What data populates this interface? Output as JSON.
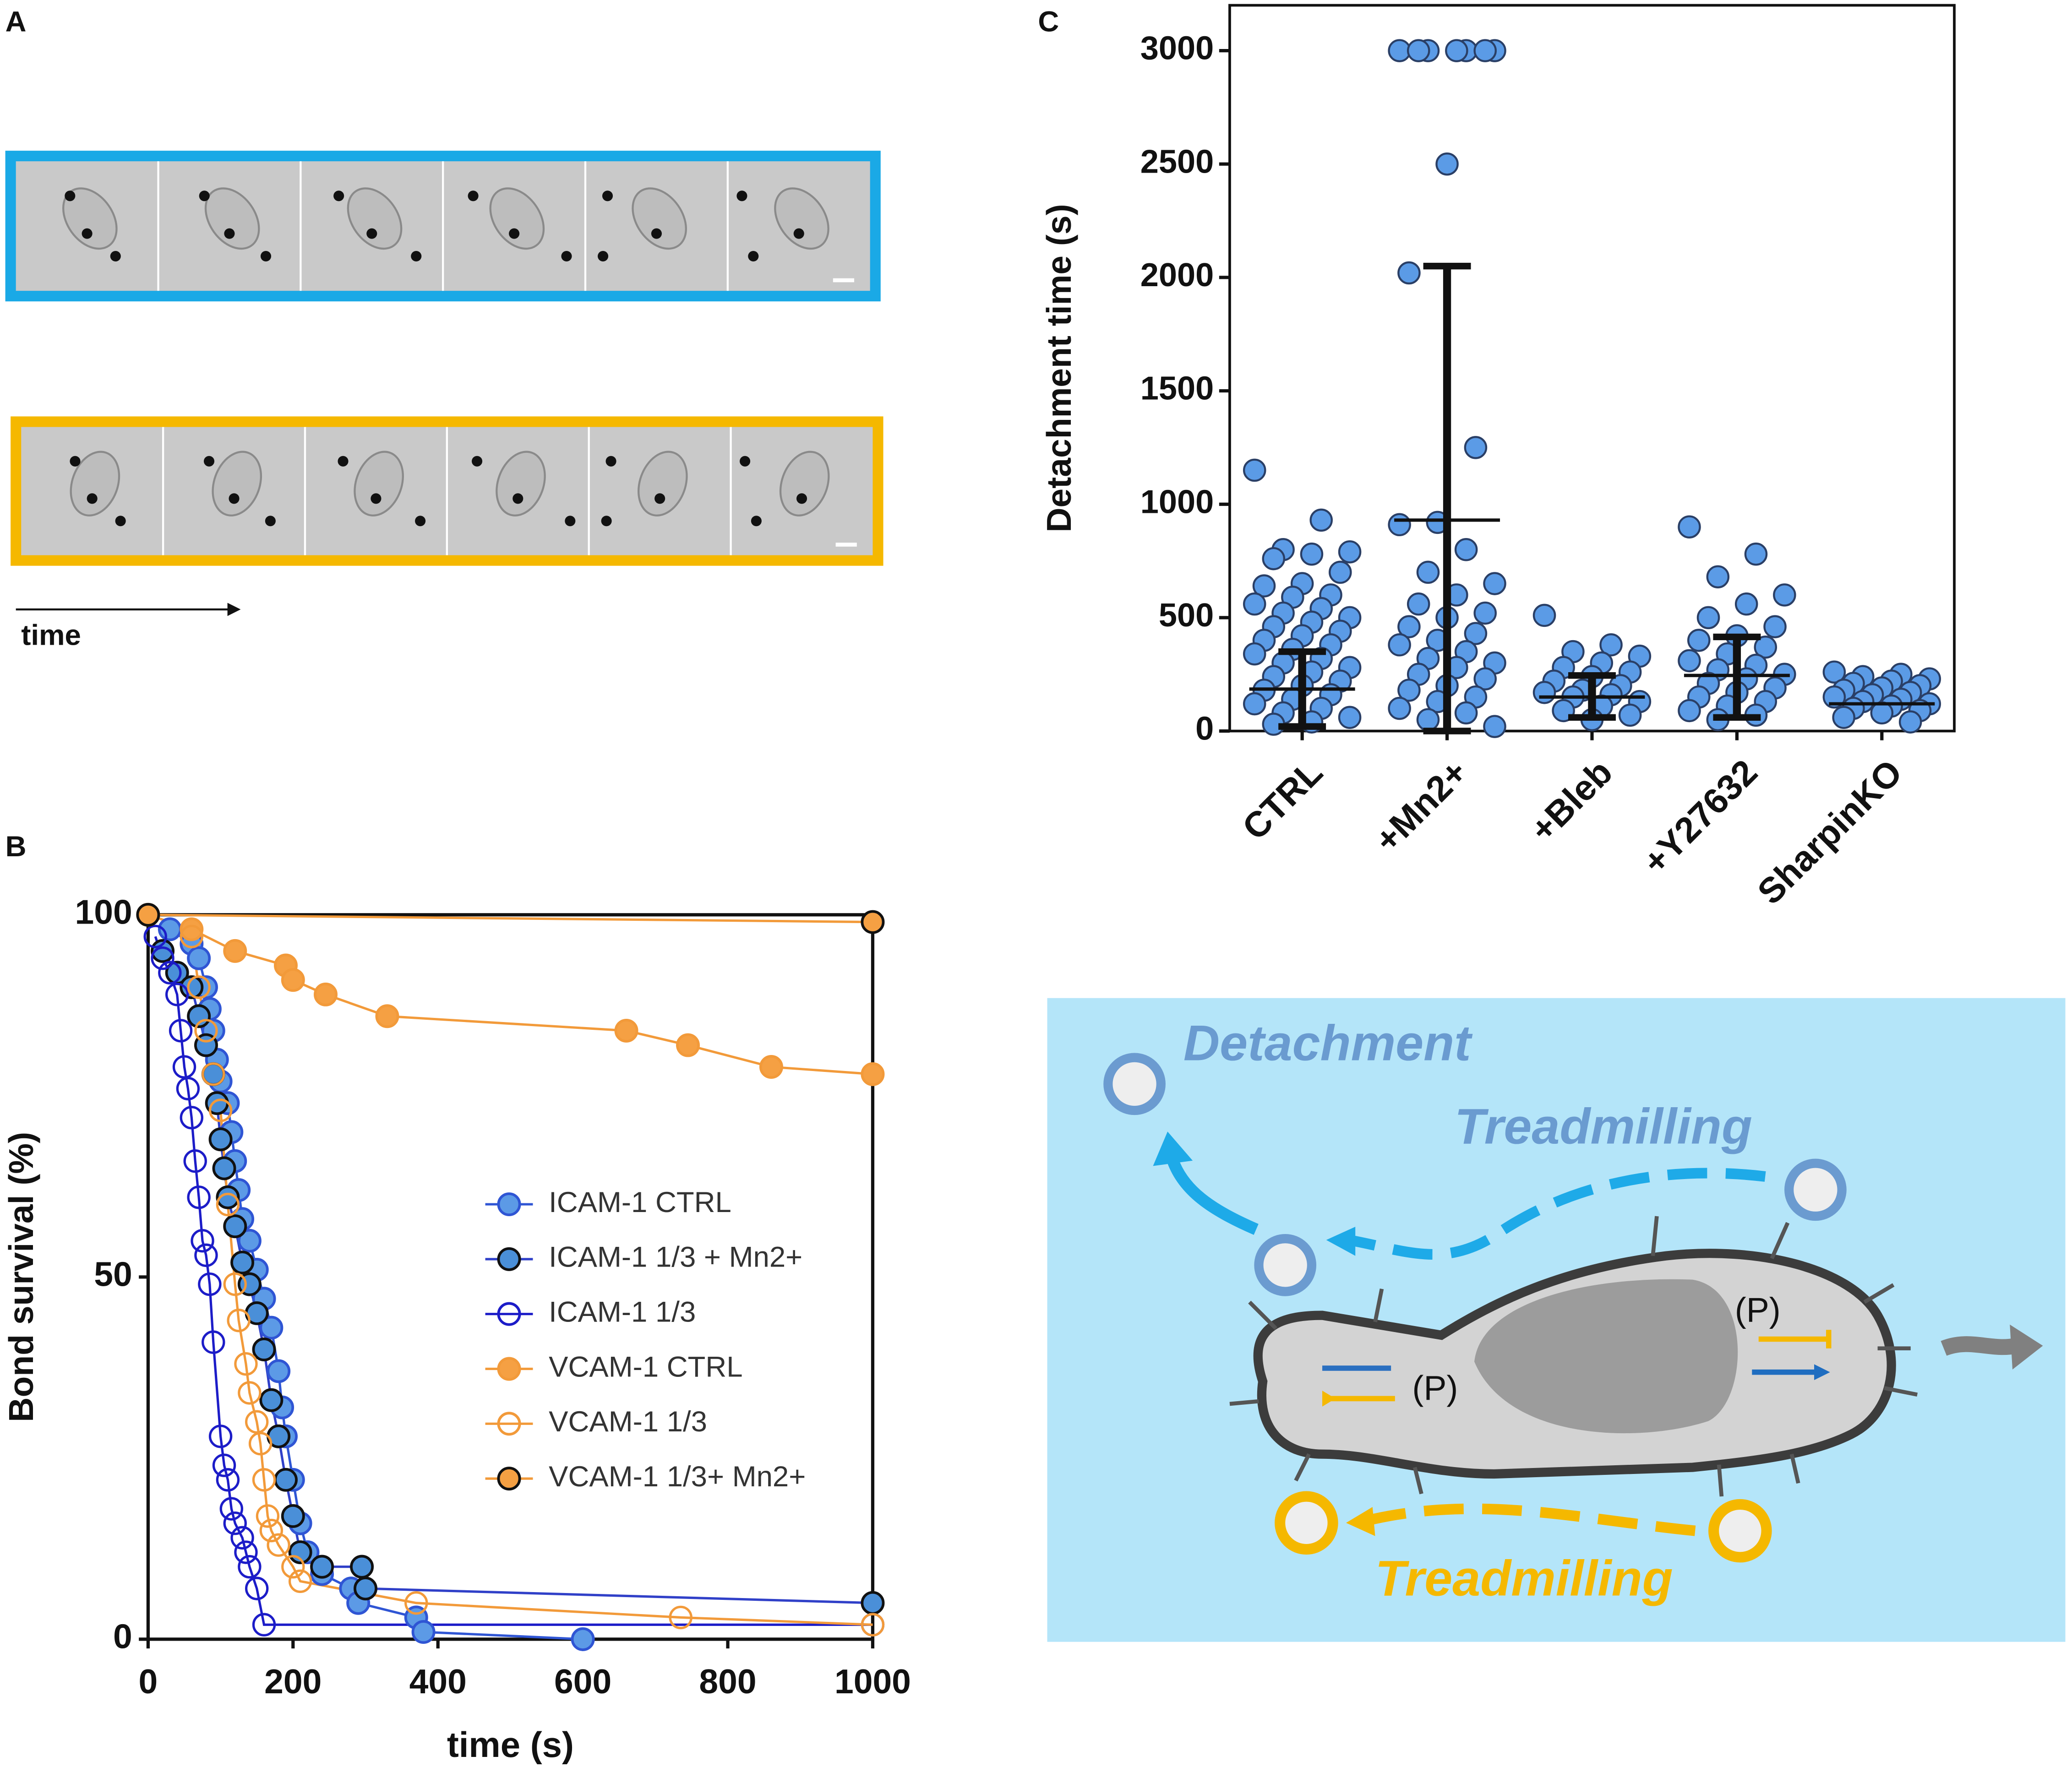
{
  "panel_labels": [
    "A",
    "B",
    "C"
  ],
  "panel_a": {
    "arrow_label": "time"
  },
  "diagram": {
    "detachment": "Detachment",
    "treadmilling_top": "Treadmilling",
    "treadmilling_bottom": "Treadmilling",
    "p_left": "(P)",
    "p_right": "(P)"
  },
  "chart_data": [
    {
      "type": "line",
      "xlabel": "time (s)",
      "ylabel": "Bond survival (%)",
      "xlim": [
        0,
        1000
      ],
      "ylim": [
        0,
        100
      ],
      "xticks": [
        0,
        200,
        400,
        600,
        800,
        1000
      ],
      "yticks": [
        0,
        50,
        100
      ],
      "legend": "center right",
      "series": [
        {
          "name": "ICAM-1 CTRL",
          "color": "#2f55d4",
          "marker": "filled",
          "markercolor": "#5c9ae6",
          "edgecolor": "#2f55d4",
          "x": [
            30,
            60,
            70,
            80,
            85,
            90,
            95,
            100,
            110,
            115,
            120,
            125,
            130,
            140,
            150,
            160,
            170,
            180,
            185,
            190,
            200,
            210,
            220,
            240,
            280,
            290,
            370,
            380,
            600
          ],
          "values": [
            98,
            96,
            94,
            90,
            87,
            84,
            80,
            77,
            74,
            70,
            66,
            62,
            58,
            55,
            51,
            47,
            43,
            37,
            32,
            28,
            22,
            16,
            12,
            9,
            7,
            5,
            3,
            1,
            0
          ]
        },
        {
          "name": "ICAM-1 1/3 + Mn2+",
          "color": "#3040c8",
          "marker": "filled",
          "markercolor": "#4a8fd8",
          "edgecolor": "#111111",
          "x": [
            20,
            40,
            60,
            70,
            80,
            90,
            95,
            100,
            105,
            110,
            120,
            130,
            140,
            150,
            160,
            170,
            180,
            190,
            200,
            210,
            240,
            295,
            300,
            1000
          ],
          "values": [
            95,
            92,
            90,
            86,
            82,
            78,
            74,
            69,
            65,
            61,
            57,
            52,
            49,
            45,
            40,
            33,
            28,
            22,
            17,
            12,
            10,
            10,
            7,
            5
          ]
        },
        {
          "name": "ICAM-1 1/3",
          "color": "#1c1cc8",
          "marker": "open",
          "markercolor": "none",
          "edgecolor": "#1c1cc8",
          "x": [
            10,
            20,
            30,
            40,
            45,
            50,
            55,
            60,
            65,
            70,
            75,
            80,
            85,
            90,
            100,
            105,
            110,
            115,
            120,
            130,
            135,
            140,
            150,
            160,
            1000
          ],
          "values": [
            97,
            94,
            92,
            89,
            84,
            79,
            76,
            72,
            66,
            61,
            55,
            53,
            49,
            41,
            28,
            24,
            22,
            18,
            16,
            14,
            12,
            10,
            7,
            2,
            2
          ]
        },
        {
          "name": "VCAM-1 CTRL",
          "color": "#f29a3a",
          "marker": "filled",
          "markercolor": "#f5a043",
          "edgecolor": "#f29a3a",
          "x": [
            0,
            60,
            120,
            190,
            200,
            245,
            330,
            660,
            745,
            860,
            1000
          ],
          "values": [
            100,
            98,
            95,
            93,
            91,
            89,
            86,
            84,
            82,
            79,
            78
          ]
        },
        {
          "name": "VCAM-1 1/3",
          "color": "#f29a3a",
          "marker": "open",
          "markercolor": "none",
          "edgecolor": "#f29a3a",
          "x": [
            60,
            70,
            80,
            90,
            100,
            110,
            120,
            125,
            135,
            140,
            150,
            155,
            160,
            165,
            170,
            180,
            200,
            210,
            370,
            735,
            1000
          ],
          "values": [
            97,
            90,
            84,
            78,
            73,
            60,
            49,
            44,
            38,
            34,
            30,
            27,
            22,
            17,
            15,
            13,
            10,
            8,
            5,
            3,
            2
          ]
        },
        {
          "name": "VCAM-1 1/3+ Mn2+",
          "color": "#f29a3a",
          "marker": "filled",
          "markercolor": "#f5a043",
          "edgecolor": "#111111",
          "x": [
            0,
            1000
          ],
          "values": [
            100,
            99
          ]
        }
      ]
    },
    {
      "type": "strip",
      "ylabel": "Detachment time (s)",
      "categories": [
        "CTRL",
        "+Mn2+",
        "+Bleb",
        "+Y27632",
        "SharpinKO"
      ],
      "ylim": [
        0,
        3200
      ],
      "yticks": [
        0,
        500,
        1000,
        1500,
        2000,
        2500,
        3000
      ],
      "color": "#5b9be6",
      "edgecolor": "#2a3f66",
      "groups": [
        {
          "values": [
            1150,
            930,
            800,
            790,
            780,
            760,
            700,
            650,
            640,
            600,
            590,
            560,
            540,
            520,
            500,
            480,
            460,
            440,
            420,
            400,
            380,
            360,
            340,
            320,
            300,
            280,
            260,
            240,
            220,
            200,
            180,
            160,
            140,
            120,
            100,
            80,
            60,
            40,
            30
          ],
          "center": 185,
          "low": 20,
          "high": 350
        },
        {
          "values": [
            3000,
            3000,
            3000,
            3000,
            3000,
            3000,
            3000,
            2500,
            2020,
            1250,
            920,
            910,
            800,
            700,
            650,
            600,
            560,
            520,
            500,
            460,
            430,
            400,
            380,
            350,
            320,
            300,
            280,
            250,
            230,
            200,
            180,
            150,
            130,
            100,
            80,
            50,
            20
          ],
          "center": 930,
          "low": 0,
          "high": 2050
        },
        {
          "values": [
            510,
            380,
            350,
            330,
            300,
            280,
            260,
            240,
            220,
            200,
            180,
            170,
            160,
            150,
            130,
            110,
            90,
            70,
            50
          ],
          "center": 150,
          "low": 60,
          "high": 245
        },
        {
          "values": [
            900,
            780,
            680,
            600,
            560,
            500,
            460,
            420,
            400,
            370,
            340,
            310,
            290,
            270,
            250,
            230,
            210,
            190,
            170,
            150,
            130,
            110,
            90,
            70,
            50
          ],
          "center": 245,
          "low": 60,
          "high": 415
        },
        {
          "values": [
            260,
            250,
            240,
            230,
            220,
            210,
            200,
            190,
            180,
            170,
            160,
            150,
            140,
            130,
            120,
            110,
            100,
            90,
            80,
            60,
            40
          ],
          "center": 120
        }
      ]
    }
  ]
}
